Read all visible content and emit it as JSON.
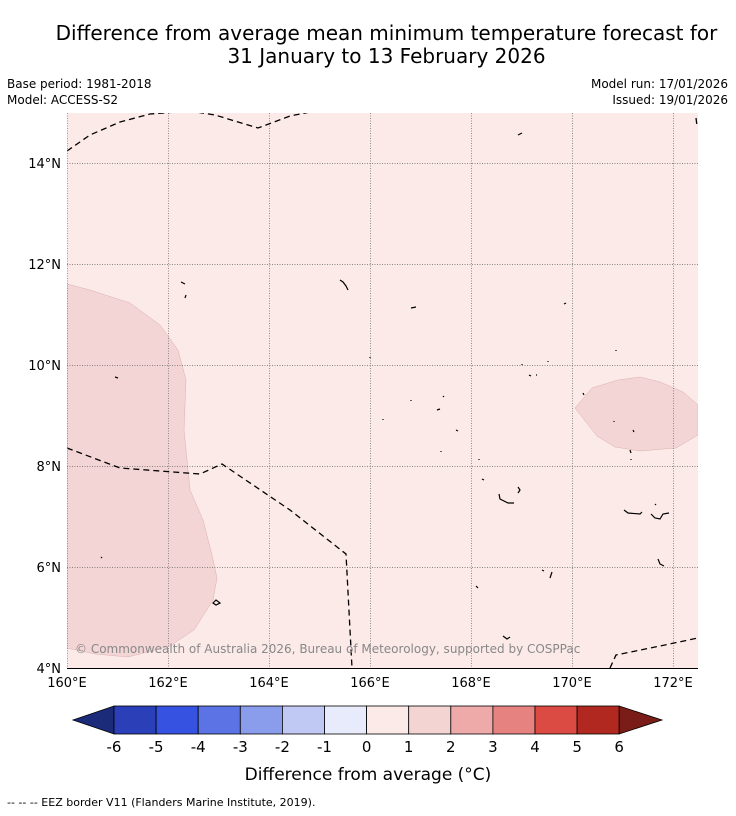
{
  "title": {
    "line1": "Difference from average mean minimum temperature forecast for",
    "line2": "31 January to 13 February 2026"
  },
  "meta": {
    "base_period": "Base period: 1981-2018",
    "model": "Model: ACCESS-S2",
    "model_run": "Model run: 17/01/2026",
    "issued": "Issued: 19/01/2026"
  },
  "map": {
    "longitude_ticks": [
      "160°E",
      "162°E",
      "164°E",
      "166°E",
      "168°E",
      "170°E",
      "172°E"
    ],
    "latitude_ticks": [
      "14°N",
      "12°N",
      "10°N",
      "8°N",
      "6°N",
      "4°N"
    ],
    "extent": {
      "lon_min": 160,
      "lon_max": 172.5,
      "lat_min": 4,
      "lat_max": 15
    },
    "copyright": "© Commonwealth of Australia 2026, Bureau of Meteorology, supported by COSPPac",
    "fill_background_anomaly": "0 to 1",
    "fill_patch_anomaly": "1 to 2"
  },
  "colorbar": {
    "ticks": [
      "-6",
      "-5",
      "-4",
      "-3",
      "-2",
      "-1",
      "0",
      "1",
      "2",
      "3",
      "4",
      "5",
      "6"
    ],
    "colors": [
      "#1c2a7a",
      "#2b40b8",
      "#3652e0",
      "#5c73e6",
      "#8a9cec",
      "#c0c8f4",
      "#e8ebfb",
      "#fbeae8",
      "#f4d4d3",
      "#eeaaa8",
      "#e6827f",
      "#dc4b43",
      "#b0281f",
      "#7a1d18"
    ],
    "label": "Difference from average (°C)"
  },
  "footer": {
    "legend": "--  --  -- EEZ border V11 (Flanders Marine Institute, 2019)."
  }
}
